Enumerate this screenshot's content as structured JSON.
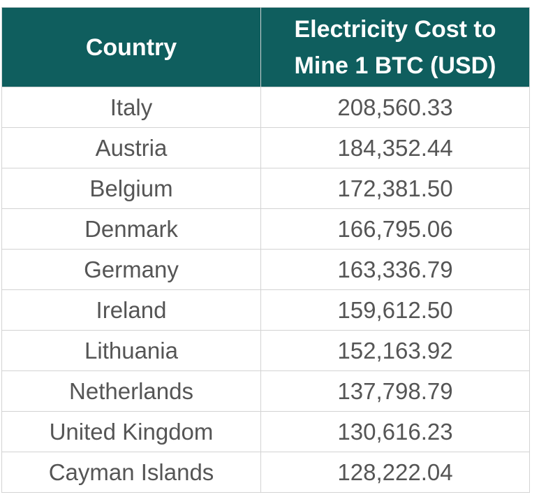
{
  "chart_data": {
    "type": "table",
    "columns": [
      "Country",
      "Electricity Cost to Mine 1 BTC (USD)"
    ],
    "rows": [
      [
        "Italy",
        "208,560.33"
      ],
      [
        "Austria",
        "184,352.44"
      ],
      [
        "Belgium",
        "172,381.50"
      ],
      [
        "Denmark",
        "166,795.06"
      ],
      [
        "Germany",
        "163,336.79"
      ],
      [
        "Ireland",
        "159,612.50"
      ],
      [
        "Lithuania",
        "152,163.92"
      ],
      [
        "Netherlands",
        "137,798.79"
      ],
      [
        "United Kingdom",
        "130,616.23"
      ],
      [
        "Cayman Islands",
        "128,222.04"
      ]
    ]
  },
  "colors": {
    "header_bg": "#0f5e5e",
    "header_text": "#ffffff",
    "cell_text": "#555555",
    "border": "#d3d3d3"
  }
}
